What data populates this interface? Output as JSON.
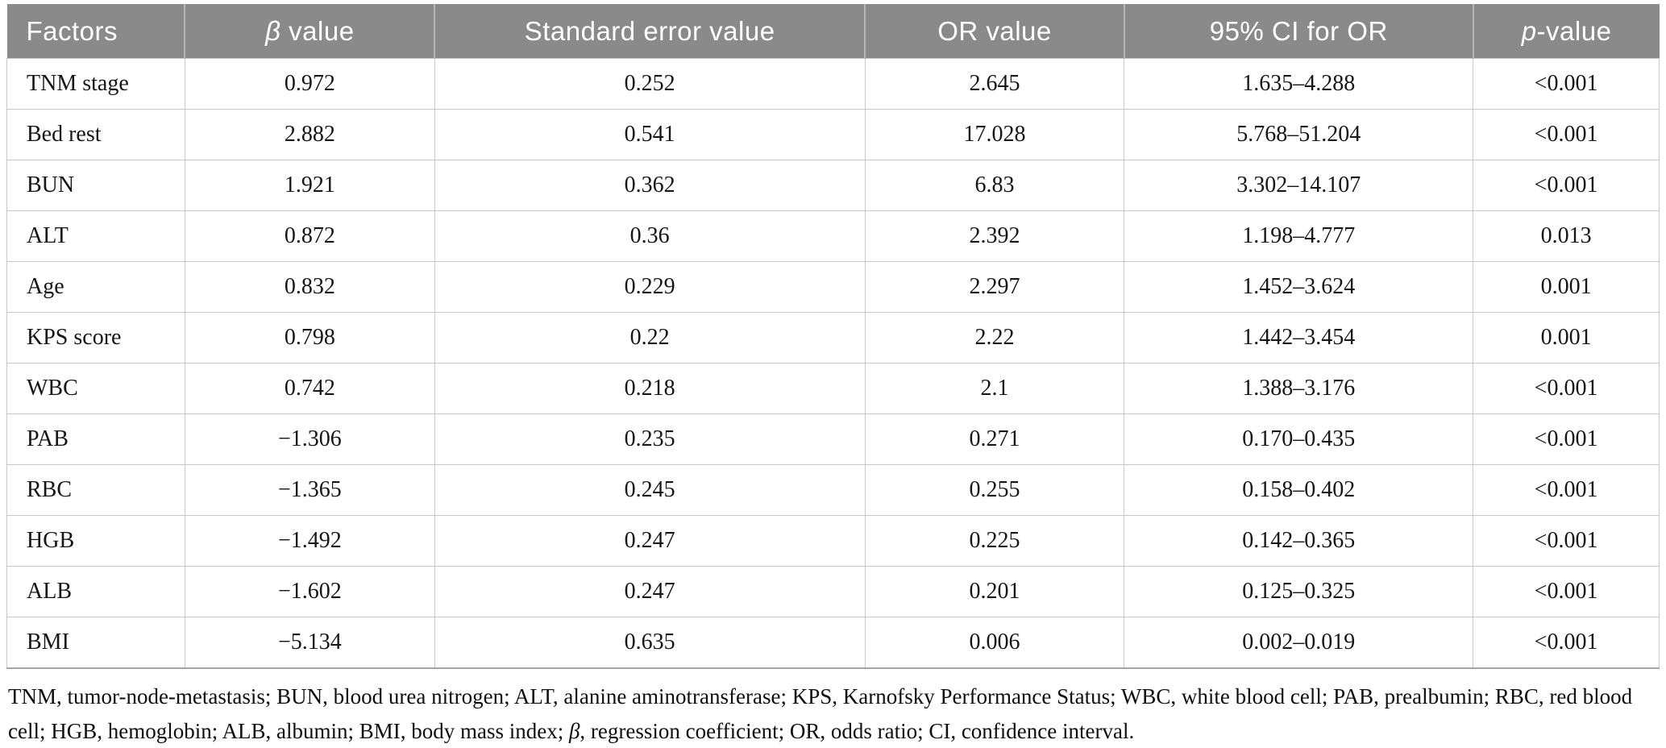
{
  "colors": {
    "header_bg": "#8a8a8a",
    "header_text": "#ffffff",
    "header_divider": "#b7b7b7",
    "cell_border": "#c9c9c9",
    "table_bottom_border": "#a6a6a6",
    "body_text": "#161616"
  },
  "table": {
    "column_widths_pct": [
      10.78,
      15.11,
      26.04,
      15.7,
      21.11,
      11.26
    ],
    "columns": [
      {
        "key": "factor",
        "label": "Factors",
        "align": "left"
      },
      {
        "key": "beta",
        "symbol": "β",
        "label": " value",
        "align": "center"
      },
      {
        "key": "se",
        "label": "Standard error value",
        "align": "center"
      },
      {
        "key": "or",
        "label": "OR value",
        "align": "center"
      },
      {
        "key": "ci",
        "label": "95% CI for OR",
        "align": "center"
      },
      {
        "key": "p",
        "symbol": "p",
        "label": "-value",
        "align": "center"
      }
    ],
    "rows": [
      {
        "factor": "TNM stage",
        "beta": "0.972",
        "se": "0.252",
        "or": "2.645",
        "ci": "1.635–4.288",
        "p": "<0.001"
      },
      {
        "factor": "Bed rest",
        "beta": "2.882",
        "se": "0.541",
        "or": "17.028",
        "ci": "5.768–51.204",
        "p": "<0.001"
      },
      {
        "factor": "BUN",
        "beta": "1.921",
        "se": "0.362",
        "or": "6.83",
        "ci": "3.302–14.107",
        "p": "<0.001"
      },
      {
        "factor": "ALT",
        "beta": "0.872",
        "se": "0.36",
        "or": "2.392",
        "ci": "1.198–4.777",
        "p": "0.013"
      },
      {
        "factor": "Age",
        "beta": "0.832",
        "se": "0.229",
        "or": "2.297",
        "ci": "1.452–3.624",
        "p": "0.001"
      },
      {
        "factor": "KPS score",
        "beta": "0.798",
        "se": "0.22",
        "or": "2.22",
        "ci": "1.442–3.454",
        "p": "0.001"
      },
      {
        "factor": "WBC",
        "beta": "0.742",
        "se": "0.218",
        "or": "2.1",
        "ci": "1.388–3.176",
        "p": "<0.001"
      },
      {
        "factor": "PAB",
        "beta": "−1.306",
        "se": "0.235",
        "or": "0.271",
        "ci": "0.170–0.435",
        "p": "<0.001"
      },
      {
        "factor": "RBC",
        "beta": "−1.365",
        "se": "0.245",
        "or": "0.255",
        "ci": "0.158–0.402",
        "p": "<0.001"
      },
      {
        "factor": "HGB",
        "beta": "−1.492",
        "se": "0.247",
        "or": "0.225",
        "ci": "0.142–0.365",
        "p": "<0.001"
      },
      {
        "factor": "ALB",
        "beta": "−1.602",
        "se": "0.247",
        "or": "0.201",
        "ci": "0.125–0.325",
        "p": "<0.001"
      },
      {
        "factor": "BMI",
        "beta": "−5.134",
        "se": "0.635",
        "or": "0.006",
        "ci": "0.002–0.019",
        "p": "<0.001"
      }
    ]
  },
  "footnote": {
    "segments": [
      {
        "text": "TNM, tumor-node-metastasis; BUN, blood urea nitrogen; ALT, alanine aminotransferase; KPS, Karnofsky Performance Status; WBC, white blood cell; PAB, prealbumin; RBC, red blood cell; HGB, hemoglobin; ALB, albumin; BMI, body mass index; ",
        "italic": false
      },
      {
        "text": "β",
        "italic": true
      },
      {
        "text": ", regression coefficient; OR, odds ratio; CI, confidence interval.",
        "italic": false
      }
    ]
  }
}
